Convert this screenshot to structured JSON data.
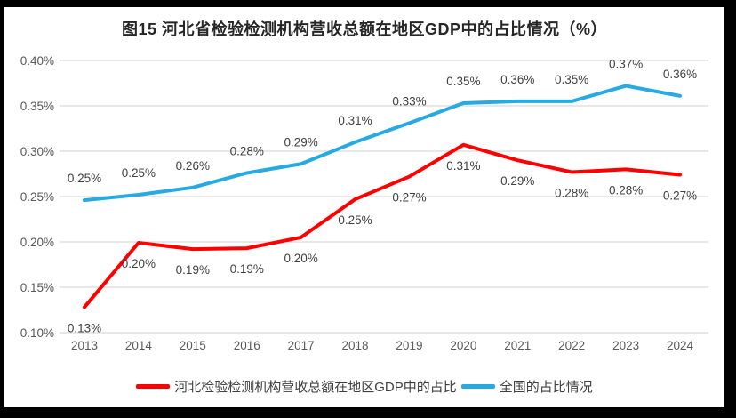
{
  "frame": {
    "border_color": "#000000",
    "panel_background": "#ffffff"
  },
  "chart_data": {
    "type": "line",
    "title": "图15 河北省检验检测机构营收总额在地区GDP中的占比情况（%）",
    "categories": [
      "2013",
      "2014",
      "2015",
      "2016",
      "2017",
      "2018",
      "2019",
      "2020",
      "2021",
      "2022",
      "2023",
      "2024"
    ],
    "series": [
      {
        "name": "河北检验检测机构营收总额在地区GDP中的占比",
        "color": "#FF0000",
        "values": [
          0.13,
          0.2,
          0.19,
          0.19,
          0.2,
          0.25,
          0.27,
          0.31,
          0.29,
          0.28,
          0.28,
          0.27
        ],
        "labels": [
          "0.13%",
          "0.20%",
          "0.19%",
          "0.19%",
          "0.20%",
          "0.25%",
          "0.27%",
          "0.31%",
          "0.29%",
          "0.28%",
          "0.28%",
          "0.27%"
        ],
        "plot_values": [
          0.128,
          0.199,
          0.192,
          0.193,
          0.205,
          0.247,
          0.272,
          0.307,
          0.29,
          0.277,
          0.28,
          0.274
        ],
        "label_position": "below"
      },
      {
        "name": "全国的占比情况",
        "color": "#27AAE1",
        "values": [
          0.25,
          0.25,
          0.26,
          0.28,
          0.29,
          0.31,
          0.33,
          0.35,
          0.36,
          0.35,
          0.37,
          0.36
        ],
        "labels": [
          "0.25%",
          "0.25%",
          "0.26%",
          "0.28%",
          "0.29%",
          "0.31%",
          "0.33%",
          "0.35%",
          "0.36%",
          "0.35%",
          "0.37%",
          "0.36%"
        ],
        "plot_values": [
          0.246,
          0.252,
          0.26,
          0.276,
          0.286,
          0.31,
          0.331,
          0.353,
          0.355,
          0.355,
          0.372,
          0.361
        ],
        "label_position": "above"
      }
    ],
    "y_axis": {
      "min": 0.1,
      "max": 0.4,
      "step": 0.05,
      "ticks": [
        {
          "value": 0.4,
          "label": "0.40%"
        },
        {
          "value": 0.35,
          "label": "0.35%"
        },
        {
          "value": 0.3,
          "label": "0.30%"
        },
        {
          "value": 0.25,
          "label": "0.25%"
        },
        {
          "value": 0.2,
          "label": "0.20%"
        },
        {
          "value": 0.15,
          "label": "0.15%"
        },
        {
          "value": 0.1,
          "label": "0.10%"
        }
      ],
      "grid": true,
      "grid_color": "#D9D9D9"
    },
    "label_color": "#404040",
    "tick_color": "#595959",
    "legend_position": "bottom"
  }
}
